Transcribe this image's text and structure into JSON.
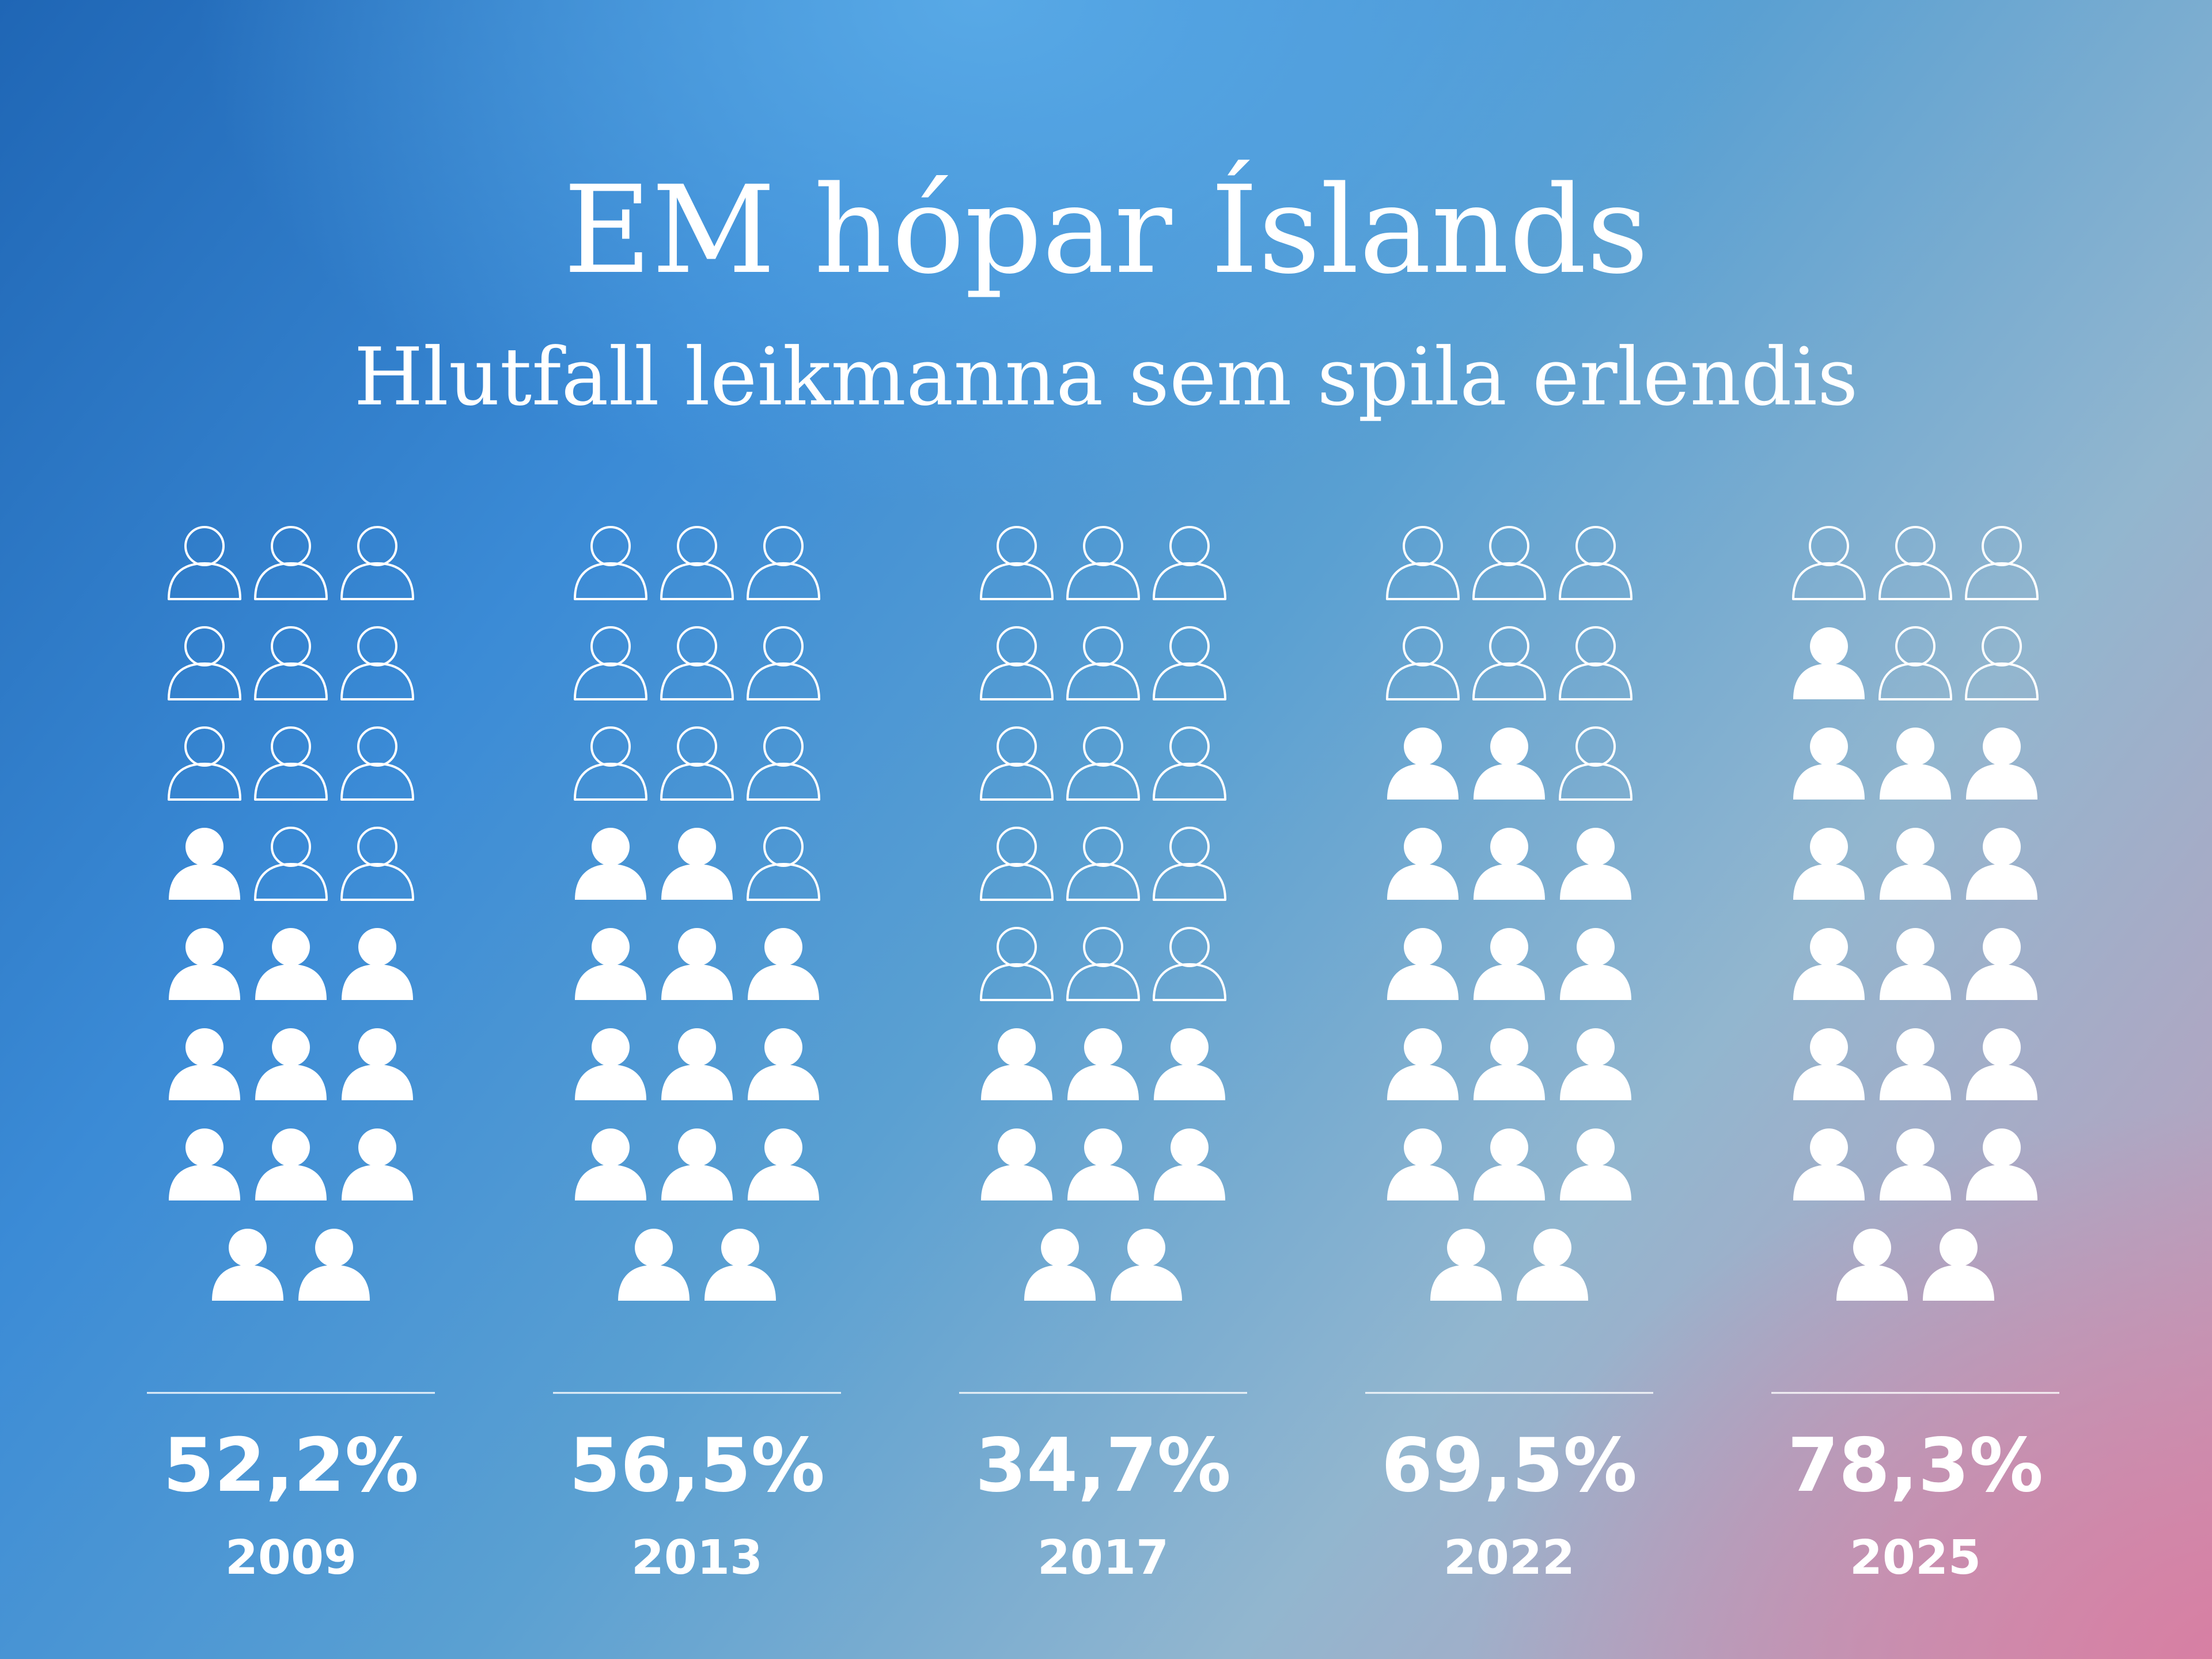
{
  "chart_data": {
    "type": "pictogram",
    "title": "EM hópar Íslands",
    "subtitle": "Hlutfall leikmanna sem spila erlendis",
    "categories": [
      "2009",
      "2013",
      "2017",
      "2022",
      "2025"
    ],
    "value_labels": [
      "52,2%",
      "56,5%",
      "34,7%",
      "69,5%",
      "78,3%"
    ],
    "values": [
      52.2,
      56.5,
      34.7,
      69.5,
      78.3
    ],
    "icons_total_per_group": 23,
    "icons_filled_per_group": [
      12,
      13,
      8,
      16,
      18
    ],
    "icon": "person-icon",
    "filled_meaning": "filled",
    "colors": {
      "icon": "#ffffff"
    }
  }
}
